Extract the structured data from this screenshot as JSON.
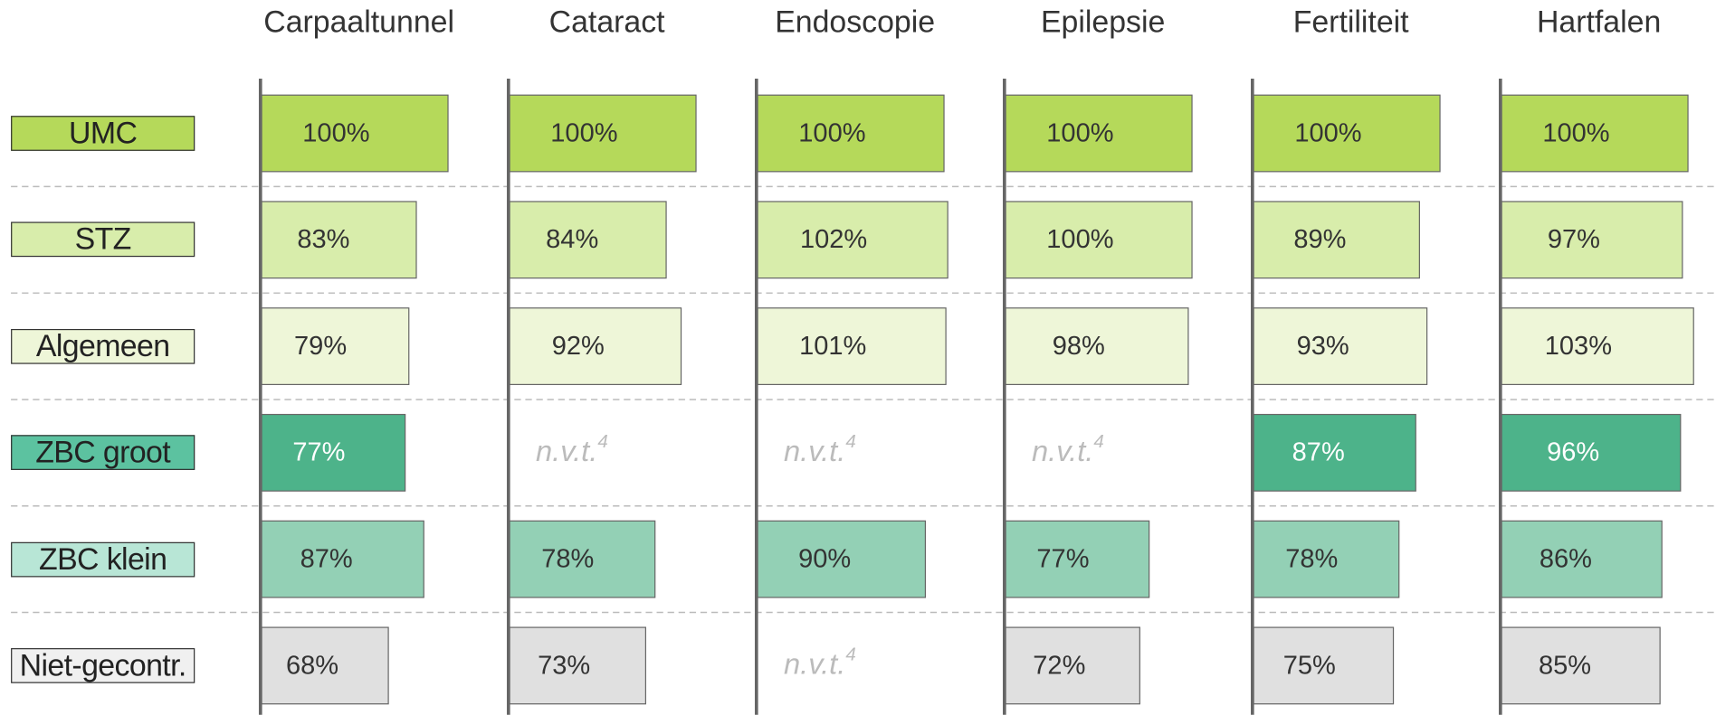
{
  "chart_data": {
    "type": "bar",
    "orientation": "horizontal",
    "categories": [
      "UMC",
      "STZ",
      "Algemeen",
      "ZBC groot",
      "ZBC klein",
      "Niet-gecontr."
    ],
    "colors": [
      "#b5d95a",
      "#d8edab",
      "#eef6d8",
      "#4db38a",
      "#93d0b5",
      "#e0e0e0"
    ],
    "label_colors": [
      "#b5d95a",
      "#d8edab",
      "#eef6d8",
      "#5cc2a0",
      "#b8e6d6",
      "#f0f0f0"
    ],
    "xlim": [
      0,
      133
    ],
    "na_label": "n.v.t.",
    "na_footnote": "4",
    "panels": [
      {
        "title": "Carpaaltunnel",
        "values": [
          100,
          83,
          79,
          77,
          87,
          68
        ],
        "value_labels": [
          "100%",
          "83%",
          "79%",
          "77%",
          "87%",
          "68%"
        ]
      },
      {
        "title": "Cataract",
        "values": [
          100,
          84,
          92,
          null,
          78,
          73
        ],
        "value_labels": [
          "100%",
          "84%",
          "92%",
          null,
          "78%",
          "73%"
        ]
      },
      {
        "title": "Endoscopie",
        "values": [
          100,
          102,
          101,
          null,
          90,
          null
        ],
        "value_labels": [
          "100%",
          "102%",
          "101%",
          null,
          "90%",
          null
        ]
      },
      {
        "title": "Epilepsie",
        "values": [
          100,
          100,
          98,
          null,
          77,
          72
        ],
        "value_labels": [
          "100%",
          "100%",
          "98%",
          null,
          "77%",
          "72%"
        ]
      },
      {
        "title": "Fertiliteit",
        "values": [
          100,
          89,
          93,
          87,
          78,
          75
        ],
        "value_labels": [
          "100%",
          "89%",
          "93%",
          "87%",
          "78%",
          "75%"
        ]
      },
      {
        "title": "Hartfalen",
        "values": [
          100,
          97,
          103,
          96,
          86,
          85
        ],
        "value_labels": [
          "100%",
          "97%",
          "103%",
          "96%",
          "86%",
          "85%"
        ]
      }
    ]
  }
}
